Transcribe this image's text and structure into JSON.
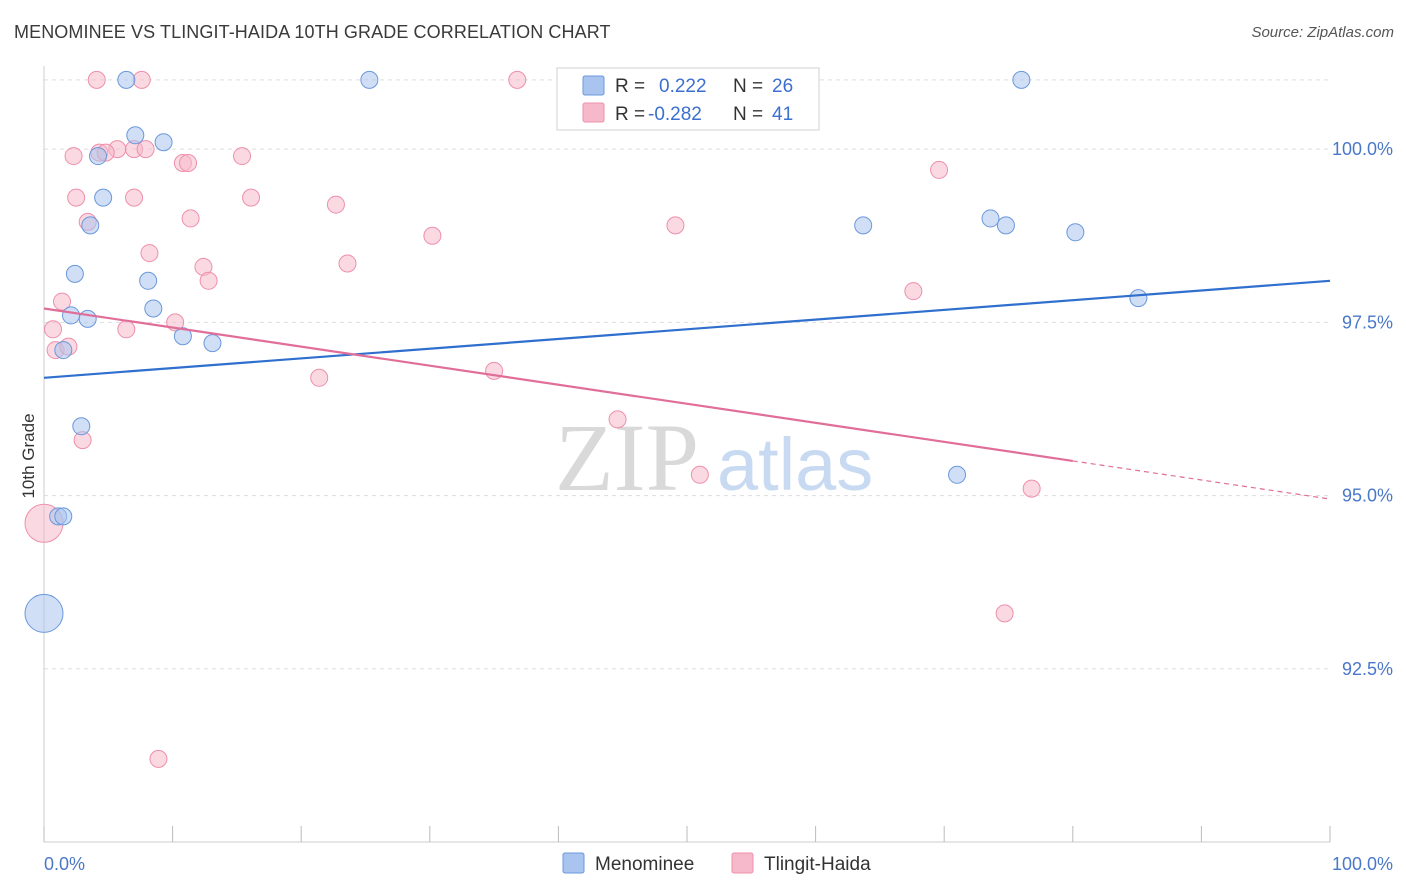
{
  "title": "MENOMINEE VS TLINGIT-HAIDA 10TH GRADE CORRELATION CHART",
  "source": "Source: ZipAtlas.com",
  "watermark": {
    "zip": "ZIP",
    "atlas": "atlas"
  },
  "colors": {
    "menominee_fill": "#a9c4ee",
    "menominee_stroke": "#6a98dc",
    "menominee_line": "#2f6fce",
    "tlingit_fill": "#f6b9cb",
    "tlingit_stroke": "#ee8fab",
    "tlingit_line": "#e06e98",
    "tick_text": "#4a78c8",
    "grid": "#dddddd"
  },
  "legend": {
    "r_label": "R =",
    "n_label": "N =",
    "rows": [
      {
        "series": "Menominee",
        "r": "0.222",
        "n": "26"
      },
      {
        "series": "Tlingit-Haida",
        "r": "-0.282",
        "n": "41"
      }
    ]
  },
  "chart_data": {
    "type": "scatter",
    "title": "MENOMINEE VS TLINGIT-HAIDA 10TH GRADE CORRELATION CHART",
    "xlabel": "",
    "ylabel": "10th Grade",
    "xlim": [
      0,
      100
    ],
    "ylim": [
      90.0,
      101.2
    ],
    "x_tick_labels": [
      "0.0%",
      "100.0%"
    ],
    "y_ticks": [
      92.5,
      95.0,
      97.5,
      100.0
    ],
    "y_tick_labels": [
      "92.5%",
      "95.0%",
      "97.5%",
      "100.0%"
    ],
    "grid": true,
    "legend_position": "top-center",
    "series": [
      {
        "name": "Menominee",
        "r": 0.222,
        "n": 26,
        "trend": {
          "x0": 0,
          "y0": 96.7,
          "x1": 100,
          "y1": 98.1
        },
        "points": [
          {
            "x": 6.4,
            "y": 101.0
          },
          {
            "x": 25.3,
            "y": 101.0
          },
          {
            "x": 76.0,
            "y": 101.0
          },
          {
            "x": 7.1,
            "y": 100.2
          },
          {
            "x": 9.3,
            "y": 100.1
          },
          {
            "x": 4.2,
            "y": 99.9
          },
          {
            "x": 4.6,
            "y": 99.3
          },
          {
            "x": 3.6,
            "y": 98.9
          },
          {
            "x": 63.7,
            "y": 98.9
          },
          {
            "x": 73.6,
            "y": 99.0
          },
          {
            "x": 74.8,
            "y": 98.9
          },
          {
            "x": 80.2,
            "y": 98.8
          },
          {
            "x": 2.4,
            "y": 98.2
          },
          {
            "x": 8.1,
            "y": 98.1
          },
          {
            "x": 8.5,
            "y": 97.7
          },
          {
            "x": 2.1,
            "y": 97.6
          },
          {
            "x": 3.4,
            "y": 97.55
          },
          {
            "x": 10.8,
            "y": 97.3
          },
          {
            "x": 1.5,
            "y": 97.1
          },
          {
            "x": 13.1,
            "y": 97.2
          },
          {
            "x": 85.1,
            "y": 97.85
          },
          {
            "x": 2.9,
            "y": 96.0
          },
          {
            "x": 71.0,
            "y": 95.3
          },
          {
            "x": 1.1,
            "y": 94.7
          },
          {
            "x": 1.5,
            "y": 94.7
          },
          {
            "x": 0.0,
            "y": 93.3,
            "size": "large"
          }
        ]
      },
      {
        "name": "Tlingit-Haida",
        "r": -0.282,
        "n": 41,
        "trend": {
          "x0": 0,
          "y0": 97.7,
          "x1": 80,
          "y1": 95.5,
          "dash_x1": 100,
          "dash_y1": 94.95
        },
        "points": [
          {
            "x": 4.1,
            "y": 101.0
          },
          {
            "x": 7.6,
            "y": 101.0
          },
          {
            "x": 36.8,
            "y": 101.0
          },
          {
            "x": 5.7,
            "y": 100.0
          },
          {
            "x": 7.0,
            "y": 100.0
          },
          {
            "x": 7.9,
            "y": 100.0
          },
          {
            "x": 4.3,
            "y": 99.95
          },
          {
            "x": 4.8,
            "y": 99.95
          },
          {
            "x": 2.3,
            "y": 99.9
          },
          {
            "x": 15.4,
            "y": 99.9
          },
          {
            "x": 10.8,
            "y": 99.8
          },
          {
            "x": 11.2,
            "y": 99.8
          },
          {
            "x": 69.6,
            "y": 99.7
          },
          {
            "x": 2.5,
            "y": 99.3
          },
          {
            "x": 7.0,
            "y": 99.3
          },
          {
            "x": 16.1,
            "y": 99.3
          },
          {
            "x": 22.7,
            "y": 99.2
          },
          {
            "x": 11.4,
            "y": 99.0
          },
          {
            "x": 3.4,
            "y": 98.95
          },
          {
            "x": 49.1,
            "y": 98.9
          },
          {
            "x": 30.2,
            "y": 98.75
          },
          {
            "x": 8.2,
            "y": 98.5
          },
          {
            "x": 23.6,
            "y": 98.35
          },
          {
            "x": 12.4,
            "y": 98.3
          },
          {
            "x": 12.8,
            "y": 98.1
          },
          {
            "x": 67.6,
            "y": 97.95
          },
          {
            "x": 1.4,
            "y": 97.8
          },
          {
            "x": 0.7,
            "y": 97.4
          },
          {
            "x": 6.4,
            "y": 97.4
          },
          {
            "x": 10.2,
            "y": 97.5
          },
          {
            "x": 0.9,
            "y": 97.1
          },
          {
            "x": 1.9,
            "y": 97.15
          },
          {
            "x": 21.4,
            "y": 96.7
          },
          {
            "x": 35.0,
            "y": 96.8
          },
          {
            "x": 44.6,
            "y": 96.1
          },
          {
            "x": 3.0,
            "y": 95.8
          },
          {
            "x": 51.0,
            "y": 95.3
          },
          {
            "x": 76.8,
            "y": 95.1
          },
          {
            "x": 74.7,
            "y": 93.3
          },
          {
            "x": 8.9,
            "y": 91.2
          },
          {
            "x": 0.0,
            "y": 94.6,
            "size": "large"
          }
        ]
      }
    ]
  }
}
